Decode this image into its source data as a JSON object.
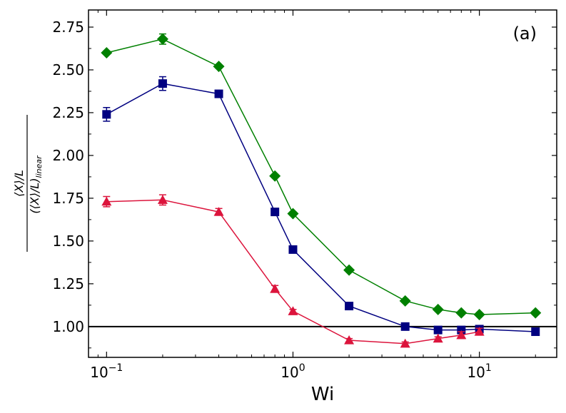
{
  "chart_data": {
    "type": "line",
    "panel_label": "(a)",
    "xlabel": "Wi",
    "ylabel_num": "⟨X⟩/L",
    "ylabel_den": "(⟨X⟩/L)",
    "ylabel_den_sub": "linear",
    "xscale": "log",
    "xlim": [
      0.08,
      26
    ],
    "ylim": [
      0.82,
      2.85
    ],
    "yticks": [
      1.0,
      1.25,
      1.5,
      1.75,
      2.0,
      2.25,
      2.5,
      2.75
    ],
    "ytick_labels": [
      "1.00",
      "1.25",
      "1.50",
      "1.75",
      "2.00",
      "2.25",
      "2.50",
      "2.75"
    ],
    "xticks": [
      {
        "base": "10",
        "exp": "−1",
        "value": 0.1
      },
      {
        "base": "10",
        "exp": "0",
        "value": 1
      },
      {
        "base": "10",
        "exp": "1",
        "value": 10
      }
    ],
    "reference_line_y": 1.0,
    "series": [
      {
        "color": "#008000",
        "marker": "diamond",
        "x": [
          0.1,
          0.2,
          0.4,
          0.8,
          1,
          2,
          4,
          6,
          8,
          10,
          20
        ],
        "y": [
          2.6,
          2.68,
          2.52,
          1.88,
          1.66,
          1.33,
          1.15,
          1.1,
          1.08,
          1.07,
          1.08
        ],
        "err": [
          0.01,
          0.03,
          0.01,
          0.01,
          0.01,
          0.01,
          0.01,
          0.01,
          0.01,
          0.01,
          0.01
        ]
      },
      {
        "color": "#000080",
        "marker": "square",
        "x": [
          0.1,
          0.2,
          0.4,
          0.8,
          1,
          2,
          4,
          6,
          8,
          10,
          20
        ],
        "y": [
          2.24,
          2.42,
          2.36,
          1.67,
          1.45,
          1.12,
          1.0,
          0.98,
          0.98,
          0.985,
          0.97
        ],
        "err": [
          0.04,
          0.04,
          0.02,
          0.01,
          0.01,
          0.01,
          0.01,
          0.01,
          0.01,
          0.01,
          0.01
        ]
      },
      {
        "color": "#dc143c",
        "marker": "triangle",
        "x": [
          0.1,
          0.2,
          0.4,
          0.8,
          1,
          2,
          4,
          6,
          8,
          10
        ],
        "y": [
          1.73,
          1.74,
          1.67,
          1.22,
          1.09,
          0.92,
          0.9,
          0.93,
          0.95,
          0.97
        ],
        "err": [
          0.03,
          0.03,
          0.02,
          0.02,
          0.01,
          0.01,
          0.01,
          0.01,
          0.02,
          0.02
        ]
      }
    ]
  }
}
